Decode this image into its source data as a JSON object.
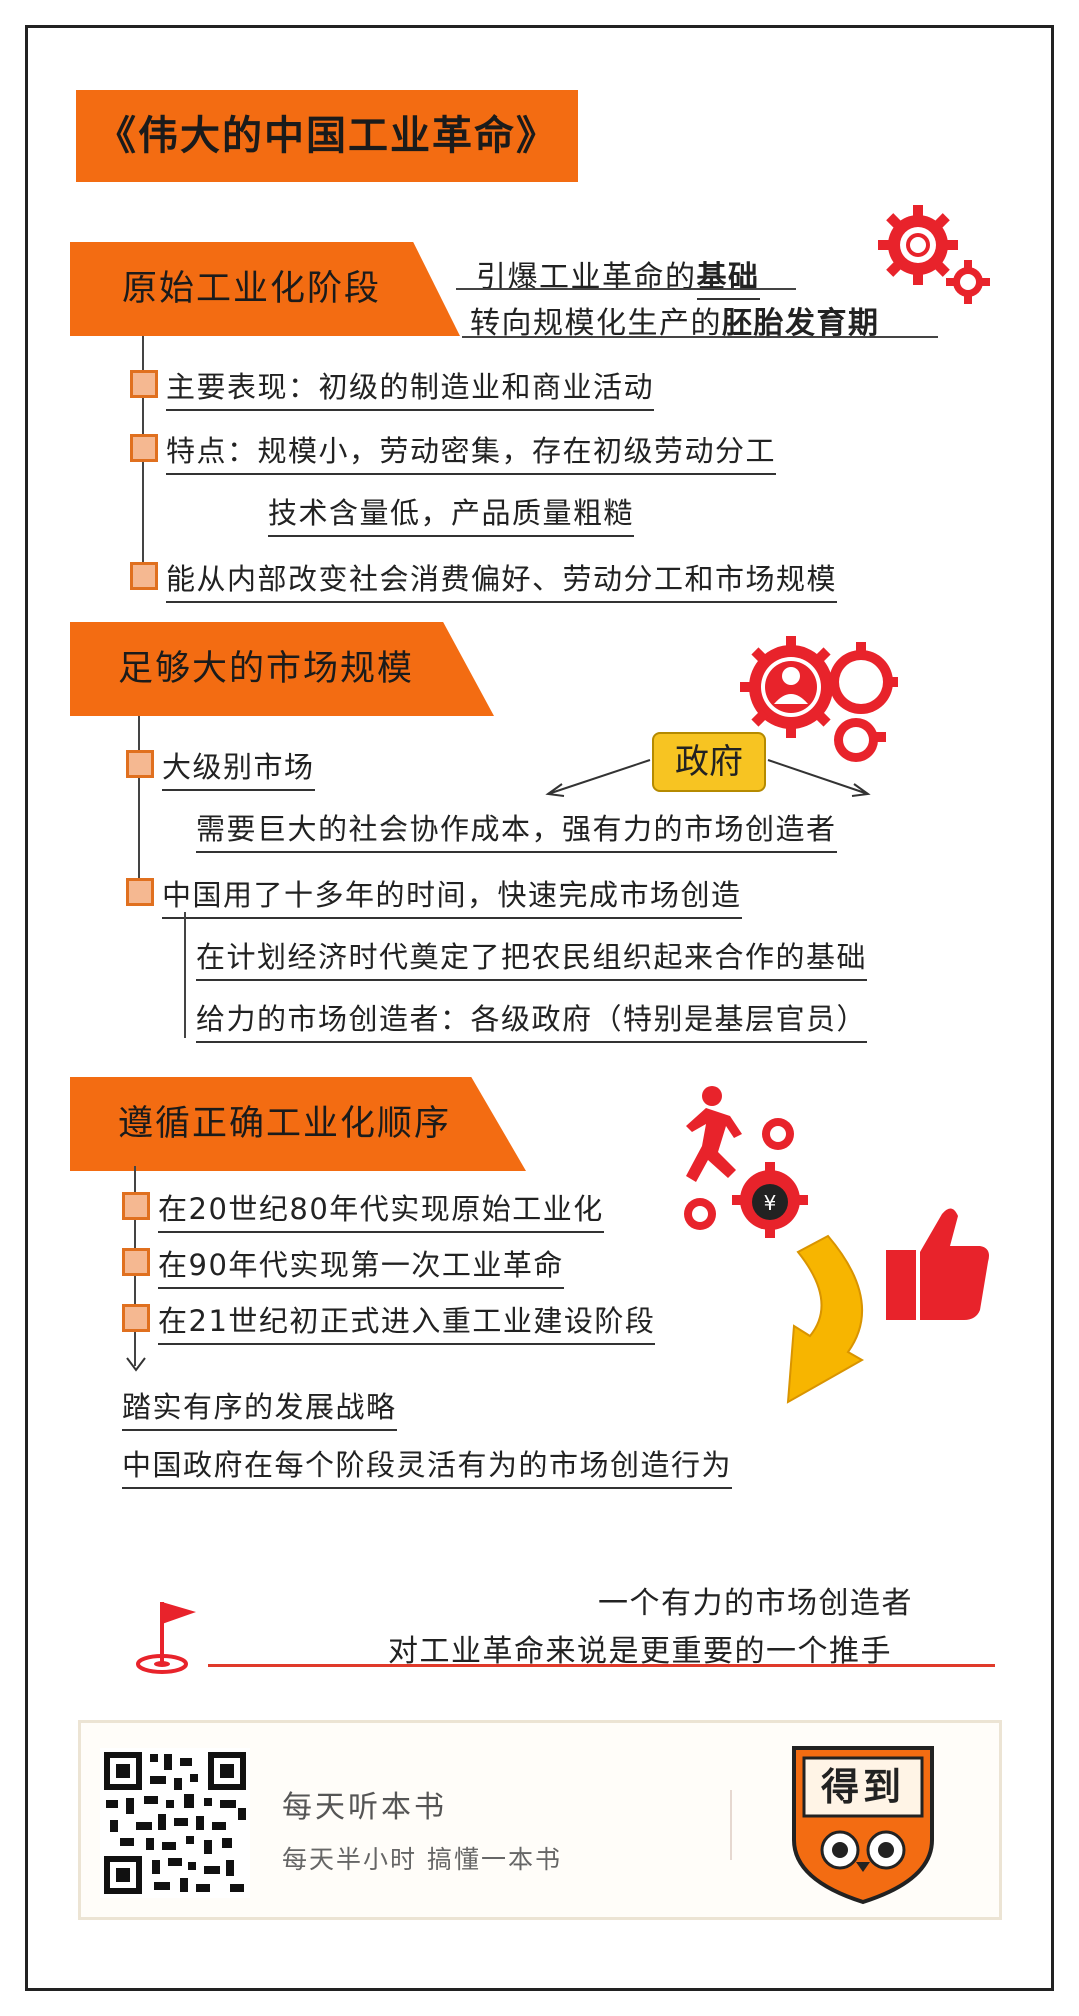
{
  "title": "《伟大的中国工业革命》",
  "section1": {
    "tag": "原始工业化阶段",
    "note_line1_prefix": "引爆工业革命的",
    "note_line1_bold": "基础",
    "note_line2_prefix": "转向规模化生产的",
    "note_line2_bold": "胚胎发育期",
    "items": [
      "主要表现：初级的制造业和商业活动",
      "特点：规模小，劳动密集，存在初级劳动分工",
      "技术含量低，产品质量粗糙",
      "能从内部改变社会消费偏好、劳动分工和市场规模"
    ]
  },
  "section2": {
    "tag": "足够大的市场规模",
    "item1": "大级别市场",
    "gov_label": "政府",
    "item1_detail": "需要巨大的社会协作成本，强有力的市场创造者",
    "item2": "中国用了十多年的时间，快速完成市场创造",
    "item2_detail1": "在计划经济时代奠定了把农民组织起来合作的基础",
    "item2_detail2": "给力的市场创造者：各级政府（特别是基层官员）"
  },
  "section3": {
    "tag": "遵循正确工业化顺序",
    "items": [
      "在20世纪80年代实现原始工业化",
      "在90年代实现第一次工业革命",
      "在21世纪初正式进入重工业建设阶段"
    ],
    "conclusion1": "踏实有序的发展战略",
    "conclusion2": "中国政府在每个阶段灵活有为的市场创造行为"
  },
  "summary": {
    "line1": "一个有力的市场创造者",
    "line2": "对工业革命来说是更重要的一个推手"
  },
  "footer": {
    "app_name": "每天听本书",
    "slogan": "每天半小时  搞懂一本书",
    "badge_text": "得到"
  },
  "colors": {
    "accent": "#f36c12",
    "red": "#e8232b",
    "yellow": "#f7c422"
  }
}
